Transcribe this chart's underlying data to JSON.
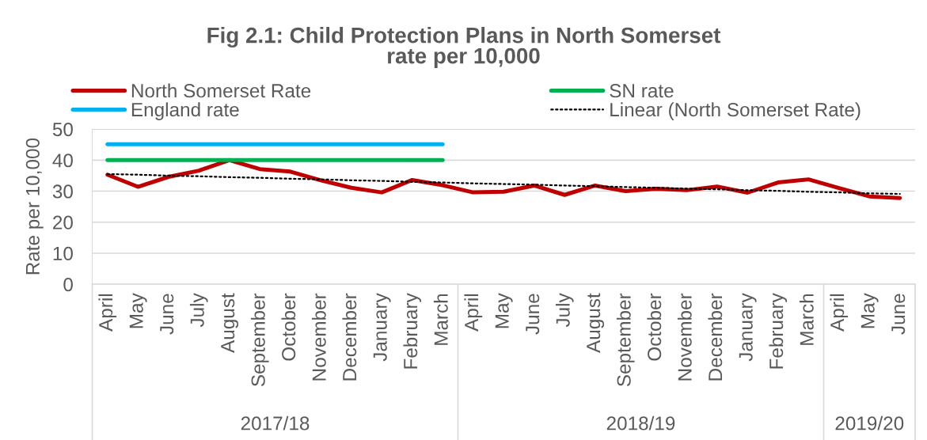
{
  "chart_data": {
    "type": "line",
    "title": "Fig 2.1: Child Protection Plans in North Somerset\nrate per 10,000",
    "ylabel": "Rate per 10,000",
    "categories": [
      "April",
      "May",
      "June",
      "July",
      "August",
      "September",
      "October",
      "November",
      "December",
      "January",
      "February",
      "March",
      "April",
      "May",
      "June",
      "July",
      "August",
      "September",
      "October",
      "November",
      "December",
      "January",
      "February",
      "March",
      "April",
      "May",
      "June"
    ],
    "series": [
      {
        "name": "North Somerset Rate",
        "color": "#c00000",
        "values": [
          35.3,
          31.4,
          34.6,
          36.6,
          40.0,
          37.1,
          36.3,
          33.5,
          31.1,
          29.6,
          33.6,
          31.9,
          29.6,
          29.8,
          31.8,
          28.8,
          31.8,
          30.0,
          30.8,
          30.3,
          31.5,
          29.5,
          32.8,
          33.8,
          31.0,
          28.3,
          27.8
        ]
      },
      {
        "name": "SN rate",
        "color": "#00b050",
        "values": [
          40,
          40,
          40,
          40,
          40,
          40,
          40,
          40,
          40,
          40,
          40,
          40,
          null,
          null,
          null,
          null,
          null,
          null,
          null,
          null,
          null,
          null,
          null,
          null,
          null,
          null,
          null
        ]
      },
      {
        "name": "England rate",
        "color": "#00b0f0",
        "values": [
          45.1,
          45.1,
          45.1,
          45.1,
          45.1,
          45.1,
          45.1,
          45.1,
          45.1,
          45.1,
          45.1,
          45.1,
          null,
          null,
          null,
          null,
          null,
          null,
          null,
          null,
          null,
          null,
          null,
          null,
          null,
          null,
          null
        ]
      },
      {
        "name": "Linear (North Somerset Rate)",
        "type": "line",
        "color": "#000000",
        "line_style": "dotted",
        "values": [
          35.5,
          35.3,
          35.0,
          34.8,
          34.5,
          34.3,
          34.0,
          33.8,
          33.5,
          33.3,
          33.0,
          32.8,
          32.5,
          32.3,
          32.1,
          31.8,
          31.6,
          31.3,
          31.1,
          30.8,
          30.6,
          30.3,
          30.1,
          29.8,
          29.6,
          29.3,
          29.1
        ]
      }
    ],
    "ylim": [
      0,
      50
    ],
    "yticks": [
      0,
      10,
      20,
      30,
      40,
      50
    ],
    "grid": "y",
    "legend": "top",
    "annotations": [
      "2017/18",
      "2018/19",
      "2019/20"
    ]
  }
}
